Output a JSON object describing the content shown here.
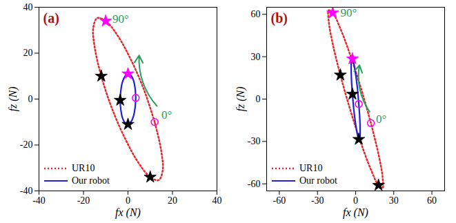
{
  "chart_data": [
    {
      "type": "line",
      "title": "(a)",
      "x_label": "fx (N)",
      "y_label": "fz (N)",
      "xlim": [
        -40,
        40
      ],
      "ylim": [
        -40,
        40
      ],
      "xticks": [
        -40,
        -20,
        0,
        20,
        40
      ],
      "yticks": [
        -40,
        -20,
        0,
        20,
        40
      ],
      "legend": "lower left",
      "series": [
        {
          "name": "UR10",
          "color": "#e8262a",
          "line_style": "dotted",
          "x": [
            12,
            7.3,
            1.4,
            -4.6,
            -10,
            -13.8,
            -15.6,
            -14.9,
            -12,
            -7.3,
            -1.4,
            4.6,
            10,
            13.8,
            15.6,
            14.9,
            12
          ],
          "y": [
            -10,
            3.8,
            17.0,
            27.6,
            34,
            35.3,
            31.1,
            22.3,
            10,
            -3.8,
            -17.0,
            -27.6,
            -34,
            -35.3,
            -31.1,
            -22.3,
            -10
          ]
        },
        {
          "name": "Our robot",
          "color": "#1f22d6",
          "line_style": "solid",
          "x": [
            3.5,
            3.2,
            2.5,
            1.3,
            0,
            -1.3,
            -2.5,
            -3.2,
            -3.5,
            -3.2,
            -2.5,
            -1.3,
            0,
            1.3,
            2.5,
            3.2,
            3.5
          ],
          "y": [
            0.5,
            4.7,
            8.1,
            10.4,
            11,
            10.0,
            7.4,
            3.7,
            -0.5,
            -4.7,
            -8.1,
            -10.4,
            -11,
            -10.0,
            -7.4,
            -3.7,
            0.5
          ]
        },
        {
          "type": "scatter",
          "marker": "star",
          "color": "#000000",
          "x": [
            -12,
            10,
            -3.5,
            0
          ],
          "y": [
            10,
            -34,
            -0.5,
            -11
          ]
        },
        {
          "type": "scatter",
          "marker": "star",
          "color": "#ff00ff",
          "x": [
            -10,
            0
          ],
          "y": [
            34,
            11
          ]
        },
        {
          "type": "scatter",
          "marker": "circle",
          "color": "#ff00ff",
          "x": [
            12,
            3.5
          ],
          "y": [
            -10,
            0.5
          ]
        }
      ],
      "annotations": [
        {
          "text": "90°",
          "x": -7,
          "y": 35,
          "color": "#2a9d5c"
        },
        {
          "text": "0°",
          "x": 15,
          "y": -7,
          "color": "#2a9d5c"
        }
      ],
      "arrow": {
        "x": [
          13,
          5
        ],
        "y": [
          -3,
          19
        ],
        "color": "#2a9d5c"
      }
    },
    {
      "type": "line",
      "title": "(b)",
      "x_label": "fx (N)",
      "y_label": "fz (N)",
      "xlim": [
        -70,
        70
      ],
      "ylim": [
        -65,
        65
      ],
      "xticks": [
        -60,
        -30,
        0,
        30,
        60
      ],
      "yticks": [
        -60,
        -30,
        0,
        30,
        60
      ],
      "legend": "lower left",
      "series": [
        {
          "name": "UR10",
          "color": "#e8262a",
          "line_style": "dotted",
          "x": [
            12,
            4.2,
            -4.2,
            -12.0,
            -18,
            -21.2,
            -21.2,
            -18.0,
            -12,
            -4.2,
            4.2,
            12.0,
            18,
            21.2,
            21.2,
            18.0,
            12
          ],
          "y": [
            -17,
            7.7,
            31.1,
            49.9,
            61,
            62.9,
            55.2,
            39.1,
            17,
            -7.7,
            -31.1,
            -49.9,
            -61,
            -62.9,
            -55.2,
            -39.1,
            -17
          ]
        },
        {
          "name": "Our robot",
          "color": "#1f22d6",
          "line_style": "solid",
          "x": [
            2.5,
            1.4,
            0,
            -1.4,
            -2.5,
            -3.3,
            -3.5,
            -3.3,
            -2.5,
            -1.4,
            0,
            1.4,
            2.5,
            3.3,
            3.5,
            3.3,
            2.5
          ],
          "y": [
            -3.5,
            7.7,
            17.7,
            25.0,
            28.5,
            27.7,
            22.6,
            14.2,
            3.5,
            -7.7,
            -17.7,
            -25.0,
            -28.5,
            -27.7,
            -22.6,
            -14.2,
            -3.5
          ]
        },
        {
          "type": "scatter",
          "marker": "star",
          "color": "#000000",
          "x": [
            -12,
            18,
            -2.5,
            2.5
          ],
          "y": [
            17,
            -61,
            3.5,
            -28.5
          ]
        },
        {
          "type": "scatter",
          "marker": "star",
          "color": "#ff00ff",
          "x": [
            -18,
            -2.5
          ],
          "y": [
            61,
            28.5
          ]
        },
        {
          "type": "scatter",
          "marker": "circle",
          "color": "#ff00ff",
          "x": [
            12,
            2.5
          ],
          "y": [
            -17,
            -3.5
          ]
        }
      ],
      "annotations": [
        {
          "text": "90°",
          "x": -12,
          "y": 61,
          "color": "#2a9d5c"
        },
        {
          "text": "0°",
          "x": 16,
          "y": -14,
          "color": "#2a9d5c"
        }
      ],
      "arrow": {
        "x": [
          11,
          3
        ],
        "y": [
          -9,
          24
        ],
        "color": "#2a9d5c"
      }
    }
  ]
}
